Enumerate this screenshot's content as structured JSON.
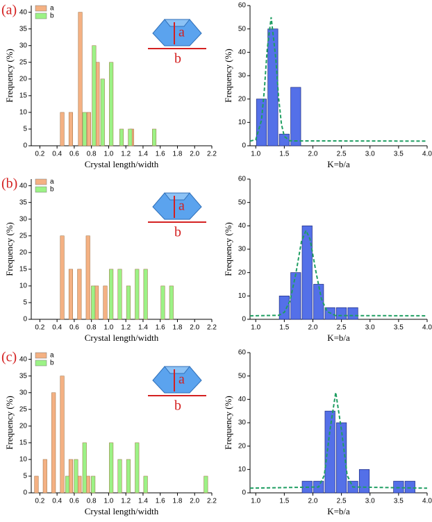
{
  "chart_data": [
    {
      "type": "bar",
      "panel_label": "(a)",
      "annotations": [
        "a",
        "b"
      ],
      "xlabel": "Crystal length/width",
      "ylabel": "Frequency (%)",
      "xlim": [
        0.1,
        2.2
      ],
      "xticks": [
        0.2,
        0.4,
        0.6,
        0.8,
        {
          "value": 1.0,
          "label": "1.0"
        },
        1.2,
        1.4,
        1.6,
        1.8,
        {
          "value": 2.0,
          "label": "2.0"
        },
        2.2
      ],
      "ylim": [
        0,
        42
      ],
      "yticks": [
        0,
        5,
        10,
        15,
        20,
        25,
        30,
        35,
        40
      ],
      "legend": "upper left",
      "series": [
        {
          "name": "a",
          "color": "#f4b183",
          "x": [
            0.46,
            0.56,
            0.67,
            0.77,
            0.87,
            1.27
          ],
          "values": [
            10,
            10,
            40,
            10,
            25,
            5
          ]
        },
        {
          "name": "b",
          "color": "#9cf286",
          "x": [
            0.72,
            0.83,
            0.93,
            1.03,
            1.15,
            1.25,
            1.53
          ],
          "values": [
            10,
            30,
            20,
            25,
            5,
            5,
            5
          ]
        }
      ]
    },
    {
      "type": "histogram",
      "xlabel": "K=b/a",
      "ylabel": "Frequency (%)",
      "xlim": [
        0.9,
        4.0
      ],
      "xticks": [
        {
          "value": 1.0,
          "label": "1.0"
        },
        1.5,
        {
          "value": 2.0,
          "label": "2.0"
        },
        2.5,
        {
          "value": 3.0,
          "label": "3.0"
        },
        3.5,
        {
          "value": 4.0,
          "label": "4.0"
        }
      ],
      "ylim": [
        0,
        60
      ],
      "yticks": [
        0,
        10,
        20,
        30,
        40,
        50,
        60
      ],
      "color": "#5470e8",
      "bins": [
        1.0,
        1.2,
        1.4,
        1.6,
        1.8
      ],
      "values": [
        20,
        50,
        5,
        25
      ],
      "fit": {
        "color": "#1f9e62",
        "x": [
          0.9,
          1.0,
          1.1,
          1.15,
          1.2,
          1.27,
          1.35,
          1.4,
          1.45,
          1.5,
          1.6,
          4.0
        ],
        "values": [
          2,
          2.6,
          10.9,
          23.7,
          41.2,
          55,
          37.6,
          20.7,
          9.2,
          4.0,
          2.1,
          2
        ]
      }
    },
    {
      "type": "bar",
      "panel_label": "(b)",
      "annotations": [
        "a",
        "b"
      ],
      "xlabel": "Crystal length/width",
      "ylabel": "Frequency (%)",
      "xlim": [
        0.1,
        2.2
      ],
      "xticks": [
        0.2,
        0.4,
        0.6,
        0.8,
        {
          "value": 1.0,
          "label": "1.0"
        },
        1.2,
        1.4,
        1.6,
        1.8,
        {
          "value": 2.0,
          "label": "2.0"
        },
        2.2
      ],
      "ylim": [
        0,
        42
      ],
      "yticks": [
        0,
        5,
        10,
        15,
        20,
        25,
        30,
        35,
        40
      ],
      "legend": "upper left",
      "series": [
        {
          "name": "a",
          "color": "#f4b183",
          "x": [
            0.46,
            0.56,
            0.66,
            0.76,
            0.86,
            0.96
          ],
          "values": [
            25,
            15,
            15,
            25,
            10,
            10
          ]
        },
        {
          "name": "b",
          "color": "#9cf286",
          "x": [
            0.82,
            1.03,
            1.13,
            1.23,
            1.33,
            1.43,
            1.63,
            1.73
          ],
          "values": [
            10,
            15,
            15,
            10,
            15,
            15,
            10,
            10
          ]
        }
      ]
    },
    {
      "type": "histogram",
      "xlabel": "K=b/a",
      "ylabel": "Frequency (%)",
      "xlim": [
        0.9,
        4.0
      ],
      "xticks": [
        {
          "value": 1.0,
          "label": "1.0"
        },
        1.5,
        {
          "value": 2.0,
          "label": "2.0"
        },
        2.5,
        {
          "value": 3.0,
          "label": "3.0"
        },
        3.5,
        {
          "value": 4.0,
          "label": "4.0"
        }
      ],
      "ylim": [
        0,
        60
      ],
      "yticks": [
        0,
        10,
        20,
        30,
        40,
        50,
        60
      ],
      "color": "#5470e8",
      "bins": [
        1.4,
        1.6,
        1.8,
        2.0,
        2.2,
        2.4,
        2.6,
        2.8
      ],
      "values": [
        10,
        20,
        40,
        15,
        5,
        5,
        5
      ],
      "fit": {
        "color": "#1f9e62",
        "x": [
          0.9,
          1.4,
          1.5,
          1.6,
          1.7,
          1.8,
          1.88,
          1.95,
          2.05,
          2.15,
          2.25,
          2.4,
          4.0
        ],
        "values": [
          1.5,
          1.7,
          3.0,
          7.9,
          19.3,
          33.3,
          38,
          34.3,
          20.8,
          8.7,
          3.3,
          1.6,
          1.5
        ]
      }
    },
    {
      "type": "bar",
      "panel_label": "(c)",
      "annotations": [
        "a",
        "b"
      ],
      "xlabel": "Crystal length/width",
      "ylabel": "Frequency (%)",
      "xlim": [
        0.1,
        2.2
      ],
      "xticks": [
        0.2,
        0.4,
        0.6,
        0.8,
        {
          "value": 1.0,
          "label": "1.0"
        },
        1.2,
        1.4,
        1.6,
        1.8,
        {
          "value": 2.0,
          "label": "2.0"
        },
        2.2
      ],
      "ylim": [
        0,
        42
      ],
      "yticks": [
        0,
        5,
        10,
        15,
        20,
        25,
        30,
        35,
        40
      ],
      "legend": "upper left",
      "series": [
        {
          "name": "a",
          "color": "#f4b183",
          "x": [
            0.16,
            0.26,
            0.36,
            0.46,
            0.56,
            0.66,
            0.76
          ],
          "values": [
            5,
            10,
            30,
            35,
            10,
            5,
            5
          ]
        },
        {
          "name": "b",
          "color": "#9cf286",
          "x": [
            0.52,
            0.62,
            0.72,
            0.82,
            1.03,
            1.13,
            1.23,
            1.33,
            1.43,
            2.13
          ],
          "values": [
            5,
            10,
            15,
            5,
            15,
            10,
            10,
            15,
            5,
            5
          ]
        }
      ]
    },
    {
      "type": "histogram",
      "xlabel": "K=b/a",
      "ylabel": "Frequency (%)",
      "xlim": [
        0.9,
        4.0
      ],
      "xticks": [
        {
          "value": 1.0,
          "label": "1.0"
        },
        1.5,
        {
          "value": 2.0,
          "label": "2.0"
        },
        2.5,
        {
          "value": 3.0,
          "label": "3.0"
        },
        3.5,
        {
          "value": 4.0,
          "label": "4.0"
        }
      ],
      "ylim": [
        0,
        60
      ],
      "yticks": [
        0,
        10,
        20,
        30,
        40,
        50,
        60
      ],
      "color": "#5470e8",
      "bins": [
        1.8,
        2.0,
        2.2,
        2.4,
        2.6,
        2.8,
        3.0,
        3.2,
        3.4,
        3.6,
        3.8
      ],
      "values": [
        5,
        5,
        35,
        30,
        5,
        10,
        0,
        0,
        5,
        5
      ],
      "fit": {
        "color": "#1f9e62",
        "x": [
          0.9,
          2.1,
          2.2,
          2.3,
          2.4,
          2.5,
          2.6,
          2.7,
          4.0
        ],
        "values": [
          2,
          2.5,
          7.5,
          27,
          43,
          27,
          7.5,
          2.5,
          2
        ]
      }
    }
  ]
}
